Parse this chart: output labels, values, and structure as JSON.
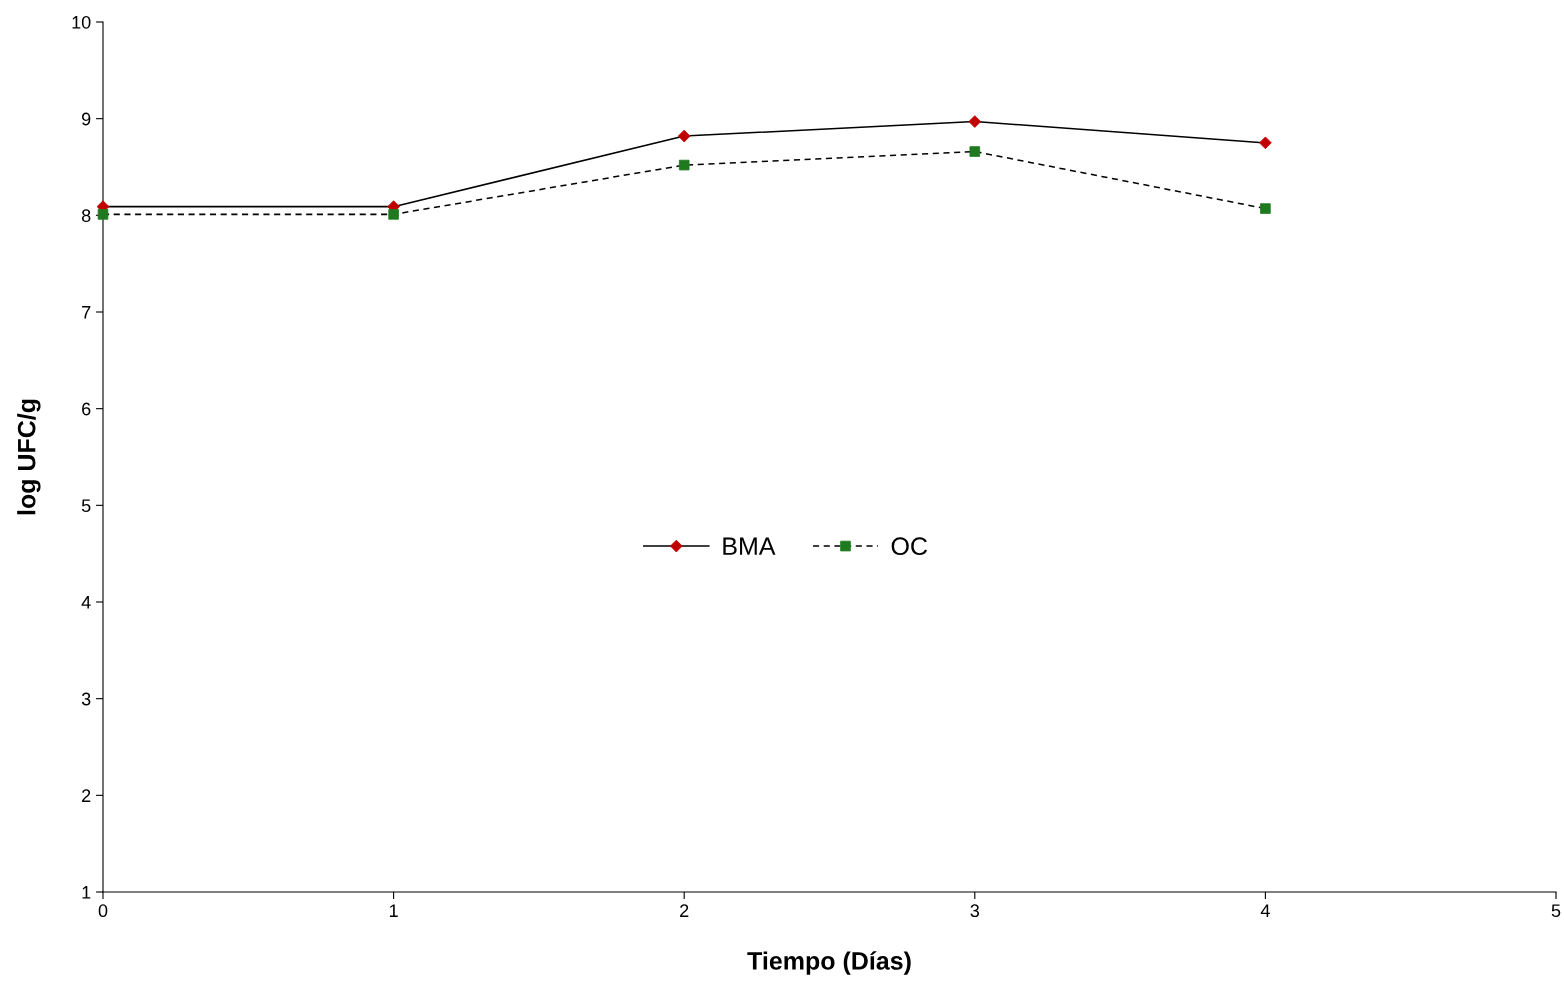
{
  "chart_data": {
    "type": "line",
    "xlabel": "Tiempo (Días)",
    "ylabel": "log UFC/g",
    "x": [
      0,
      1,
      2,
      3,
      4
    ],
    "series": [
      {
        "name": "BMA",
        "color": "#c00000",
        "values": [
          8.09,
          8.09,
          8.82,
          8.97,
          8.75
        ],
        "marker": "diamond",
        "line_style": "solid"
      },
      {
        "name": "OC",
        "color": "#1f7a1f",
        "values": [
          8.01,
          8.01,
          8.52,
          8.66,
          8.07
        ],
        "marker": "square",
        "line_style": "dashed"
      }
    ],
    "xlim": [
      0,
      5
    ],
    "xticks": [
      0,
      1,
      2,
      3,
      4,
      5
    ],
    "ylim": [
      1,
      10
    ],
    "yticks": [
      1,
      2,
      3,
      4,
      5,
      6,
      7,
      8,
      9,
      10
    ],
    "grid": false,
    "legend": "center"
  }
}
